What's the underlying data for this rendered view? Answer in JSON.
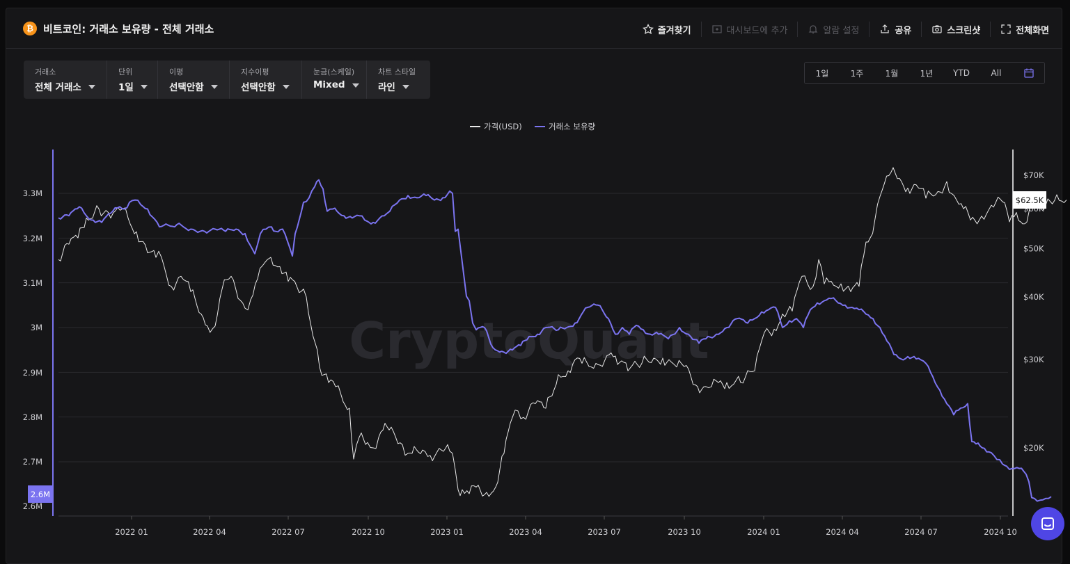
{
  "header": {
    "coin_symbol": "₿",
    "title": "비트코인: 거래소 보유량 - 전체 거래소",
    "actions": {
      "favorite": "즐겨찾기",
      "add_dashboard": "대시보드에 추가",
      "alert": "알람 설정",
      "share": "공유",
      "screenshot": "스크린샷",
      "fullscreen": "전체화면"
    }
  },
  "filters": [
    {
      "label": "거래소",
      "value": "전체 거래소"
    },
    {
      "label": "단위",
      "value": "1일"
    },
    {
      "label": "이평",
      "value": "선택안함"
    },
    {
      "label": "지수이평",
      "value": "선택안함"
    },
    {
      "label": "눈금(스케일)",
      "value": "Mixed"
    },
    {
      "label": "차트 스타일",
      "value": "라인"
    }
  ],
  "ranges": [
    "1일",
    "1주",
    "1월",
    "1년",
    "YTD",
    "All"
  ],
  "watermark": "CryptoQuant",
  "colors": {
    "accent": "#7b74f0",
    "price": "#e8e8e8",
    "bg": "#161618"
  },
  "chart_data": {
    "type": "line",
    "legend_position": "top-center",
    "grid": true,
    "left_axis": {
      "ticks": [
        "3.3M",
        "3.2M",
        "3.1M",
        "3M",
        "2.9M",
        "2.8M",
        "2.7M",
        "2.6M"
      ],
      "current_label": "2.6M",
      "range": [
        2.6,
        3.33
      ]
    },
    "right_axis": {
      "ticks": [
        "$70K",
        "$60K",
        "$50K",
        "$40K",
        "$30K",
        "$20K"
      ],
      "current_label": "$62.5K",
      "scale": "log"
    },
    "x_ticks": [
      "2022 01",
      "2022 04",
      "2022 07",
      "2022 10",
      "2023 01",
      "2023 04",
      "2023 07",
      "2023 10",
      "2024 01",
      "2024 04",
      "2024 07",
      "2024 10"
    ],
    "series": [
      {
        "name": "가격(USD)",
        "color": "#e8e8e8",
        "axis": "right",
        "x": [
          0,
          15,
          28,
          40,
          58,
          75,
          92,
          100,
          112,
          128,
          140,
          148,
          162,
          176,
          190,
          205,
          214,
          225,
          235,
          248,
          268,
          276,
          286,
          300,
          305,
          318,
          330,
          352,
          356,
          375,
          388,
          398,
          406,
          418,
          424,
          432,
          444,
          452,
          460,
          466,
          478,
          494,
          502,
          508,
          523,
          534,
          550,
          562,
          566,
          574,
          580,
          590,
          600,
          615,
          628,
          640,
          652,
          660,
          668,
          685,
          700,
          718,
          732,
          742,
          752,
          772,
          800,
          818,
          838,
          855,
          868,
          880,
          888,
          902,
          918,
          930,
          938,
          948,
          960,
          980,
          1000,
          1014,
          1028,
          1040,
          1054,
          1068,
          1076,
          1084,
          1092,
          1100,
          1110,
          1124,
          1138,
          1150,
          1160,
          1166,
          1180,
          1196,
          1208,
          1220,
          1232,
          1246,
          1260,
          1276,
          1290,
          1300,
          1310,
          1326,
          1340,
          1356,
          1366,
          1376,
          1388,
          1400,
          1418,
          1434,
          1448
        ],
        "values": [
          47.5,
          51,
          52.5,
          57.5,
          60,
          57.5,
          60,
          57.5,
          54,
          49,
          48,
          48,
          42,
          44,
          41,
          37,
          35,
          35,
          41.5,
          44,
          38,
          39.5,
          43.5,
          47.5,
          48,
          46,
          43,
          41.5,
          40,
          29,
          27,
          26.5,
          25.5,
          24,
          19,
          21,
          20.5,
          20,
          21,
          21.7,
          22,
          20.3,
          19.5,
          19.5,
          19.8,
          19.3,
          19.8,
          19.7,
          19.5,
          16.5,
          16.5,
          16.2,
          16.7,
          16.3,
          16.7,
          19.5,
          23,
          23.7,
          23,
          24.5,
          24,
          28,
          28.5,
          30,
          29.5,
          29.5,
          30.5,
          28.5,
          29.5,
          30.2,
          30.2,
          29.7,
          29,
          29.2,
          26.5,
          26.5,
          26.5,
          27,
          27,
          27,
          28.5,
          34,
          34.5,
          37,
          37.5,
          44,
          42.5,
          42,
          47.5,
          42.5,
          43,
          42.5,
          41,
          42,
          51.5,
          52.5,
          63.5,
          71,
          69,
          66,
          67,
          63,
          64,
          68,
          62.5,
          60,
          57,
          58,
          61,
          62,
          56.5,
          59,
          56,
          62,
          61,
          64,
          62.5
        ]
      },
      {
        "name": "거래소 보유량",
        "color": "#7b74f0",
        "axis": "left",
        "x": [
          0,
          15,
          30,
          40,
          50,
          62,
          78,
          88,
          95,
          102,
          110,
          118,
          128,
          145,
          170,
          190,
          210,
          225,
          240,
          255,
          268,
          282,
          290,
          298,
          306,
          312,
          322,
          336,
          340,
          352,
          360,
          368,
          374,
          380,
          386,
          394,
          400,
          410,
          422,
          432,
          440,
          452,
          468,
          476,
          490,
          502,
          515,
          528,
          540,
          552,
          562,
          566,
          570,
          574,
          578,
          582,
          586,
          590,
          595,
          600,
          612,
          624,
          640,
          652,
          664,
          676,
          688,
          700,
          718,
          730,
          742,
          760,
          775,
          790,
          800,
          810,
          820,
          830,
          840,
          850,
          862,
          876,
          892,
          908,
          920,
          930,
          945,
          960,
          975,
          990,
          1000,
          1010,
          1020,
          1030,
          1040,
          1050,
          1060,
          1070,
          1080,
          1090,
          1100,
          1110,
          1120,
          1130,
          1140,
          1150,
          1160,
          1170,
          1180,
          1190,
          1200,
          1210,
          1220,
          1232,
          1246,
          1256,
          1266,
          1276,
          1286,
          1296,
          1306,
          1312,
          1318,
          1324,
          1330,
          1340,
          1348,
          1356,
          1362,
          1370,
          1380,
          1390,
          1394,
          1398,
          1402,
          1406,
          1410,
          1414,
          1418,
          1422,
          1426
        ],
        "values": [
          3.245,
          3.25,
          3.27,
          3.25,
          3.24,
          3.235,
          3.26,
          3.27,
          3.265,
          3.28,
          3.285,
          3.275,
          3.265,
          3.225,
          3.23,
          3.22,
          3.215,
          3.22,
          3.215,
          3.22,
          3.21,
          3.165,
          3.21,
          3.22,
          3.225,
          3.215,
          3.22,
          3.16,
          3.21,
          3.28,
          3.29,
          3.315,
          3.33,
          3.31,
          3.26,
          3.265,
          3.26,
          3.25,
          3.245,
          3.25,
          3.24,
          3.235,
          3.25,
          3.26,
          3.285,
          3.295,
          3.29,
          3.295,
          3.285,
          3.29,
          3.305,
          3.3,
          3.215,
          3.22,
          3.17,
          3.12,
          3.07,
          3.06,
          3.01,
          2.995,
          3.0,
          2.955,
          2.945,
          2.95,
          2.96,
          2.98,
          2.985,
          3.0,
          2.995,
          3.0,
          3.01,
          3.045,
          3.05,
          3.02,
          2.985,
          3.0,
          2.985,
          3.005,
          2.995,
          2.985,
          2.985,
          2.975,
          3.0,
          2.98,
          2.965,
          2.975,
          2.985,
          3.0,
          3.02,
          3.01,
          3.02,
          3.035,
          3.04,
          3.045,
          3.0,
          3.015,
          3.02,
          3.0,
          3.04,
          3.055,
          3.06,
          3.065,
          3.055,
          3.05,
          3.045,
          3.04,
          3.03,
          3.02,
          3.0,
          2.97,
          2.94,
          2.93,
          2.935,
          2.93,
          2.92,
          2.89,
          2.86,
          2.83,
          2.805,
          2.82,
          2.83,
          2.745,
          2.74,
          2.735,
          2.73,
          2.72,
          2.705,
          2.695,
          2.69,
          2.685,
          2.685,
          2.672,
          2.655,
          2.62,
          2.618,
          2.612,
          2.614,
          2.615,
          2.618,
          2.618,
          2.622
        ]
      }
    ]
  }
}
